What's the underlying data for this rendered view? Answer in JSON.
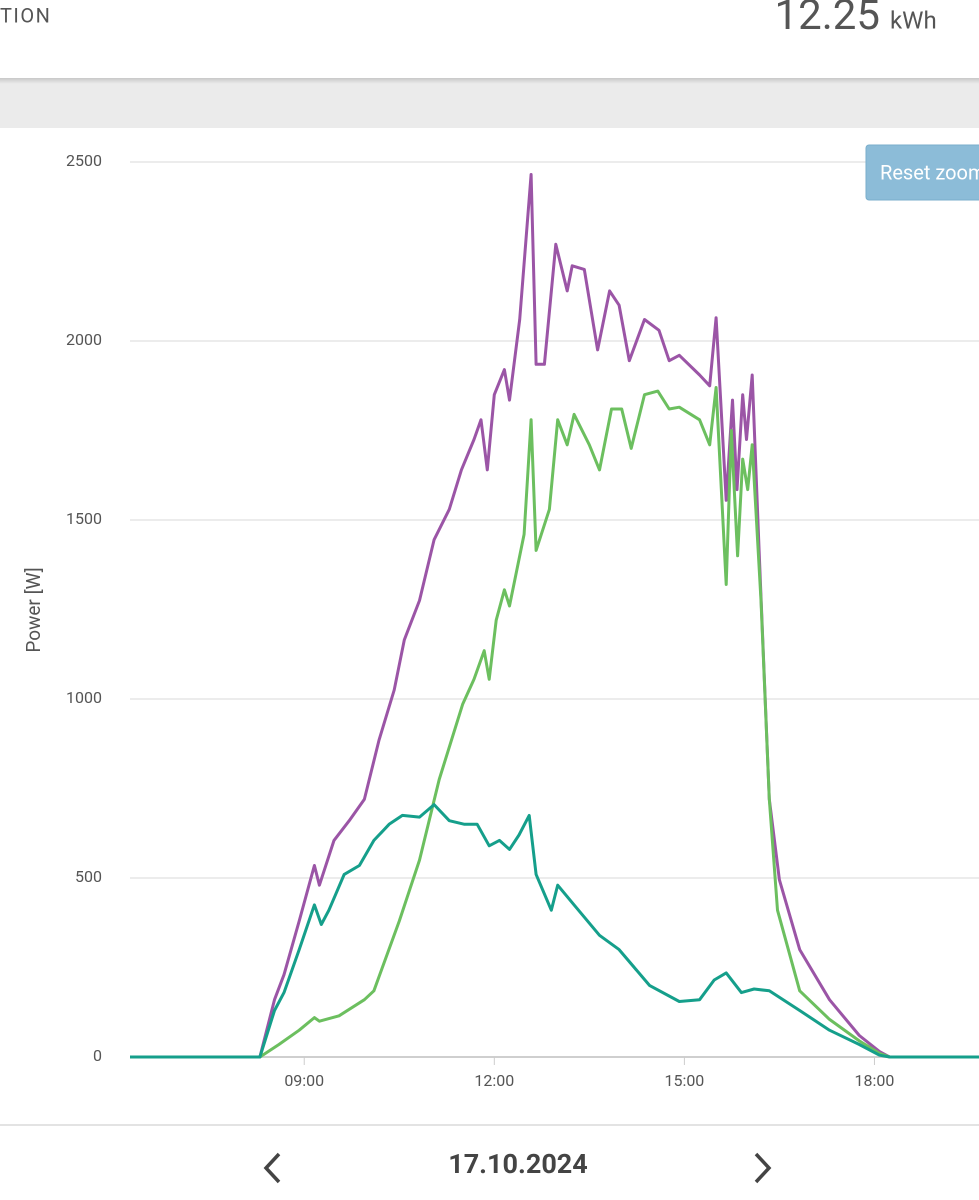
{
  "header": {
    "title": "TION",
    "total": "12.25",
    "unit": "kWh"
  },
  "reset_button": "Reset zoom",
  "date": "17.10.2024",
  "chart_data": {
    "type": "line",
    "ylabel": "Power [W]",
    "xlim": [
      6.25,
      19.65
    ],
    "ylim": [
      0,
      2500
    ],
    "xticks": [
      {
        "value": 9,
        "label": "09:00"
      },
      {
        "value": 12,
        "label": "12:00"
      },
      {
        "value": 15,
        "label": "15:00"
      },
      {
        "value": 18,
        "label": "18:00"
      }
    ],
    "yticks": [
      0,
      500,
      1000,
      1500,
      2000,
      2500
    ],
    "grid": true,
    "series": [
      {
        "color": "#9b55a6",
        "x": [
          6.25,
          8.3,
          8.53,
          8.68,
          8.92,
          9.16,
          9.24,
          9.47,
          9.71,
          9.95,
          10.18,
          10.42,
          10.58,
          10.82,
          11.05,
          11.29,
          11.48,
          11.68,
          11.79,
          11.89,
          12.0,
          12.16,
          12.24,
          12.4,
          12.58,
          12.66,
          12.79,
          12.97,
          13.15,
          13.23,
          13.42,
          13.63,
          13.82,
          13.97,
          14.13,
          14.37,
          14.6,
          14.76,
          14.92,
          15.24,
          15.4,
          15.5,
          15.66,
          15.76,
          15.83,
          15.92,
          15.98,
          16.07,
          16.18,
          16.34,
          16.5,
          16.82,
          17.29,
          17.76,
          18.08,
          18.24,
          19.65
        ],
        "values": [
          0,
          0,
          160,
          230,
          380,
          535,
          480,
          605,
          660,
          720,
          885,
          1025,
          1165,
          1275,
          1445,
          1530,
          1640,
          1725,
          1780,
          1640,
          1850,
          1920,
          1835,
          2060,
          2465,
          1935,
          1935,
          2270,
          2140,
          2210,
          2200,
          1975,
          2140,
          2100,
          1945,
          2060,
          2030,
          1945,
          1960,
          1905,
          1875,
          2065,
          1555,
          1835,
          1585,
          1850,
          1725,
          1905,
          1415,
          720,
          495,
          300,
          160,
          60,
          15,
          0,
          0
        ]
      },
      {
        "color": "#6cbf5f",
        "x": [
          6.25,
          8.3,
          8.6,
          8.92,
          9.16,
          9.24,
          9.55,
          9.95,
          10.1,
          10.5,
          10.82,
          11.13,
          11.5,
          11.68,
          11.84,
          11.92,
          12.03,
          12.16,
          12.24,
          12.47,
          12.58,
          12.66,
          12.87,
          13.0,
          13.15,
          13.26,
          13.5,
          13.66,
          13.85,
          14.01,
          14.16,
          14.37,
          14.58,
          14.76,
          14.92,
          15.24,
          15.4,
          15.5,
          15.66,
          15.74,
          15.84,
          15.92,
          16.0,
          16.07,
          16.21,
          16.34,
          16.47,
          16.82,
          17.29,
          17.76,
          18.08,
          18.24,
          19.65
        ],
        "values": [
          0,
          0,
          35,
          75,
          110,
          100,
          115,
          160,
          185,
          380,
          550,
          775,
          985,
          1055,
          1135,
          1055,
          1220,
          1305,
          1260,
          1460,
          1780,
          1415,
          1530,
          1780,
          1710,
          1795,
          1710,
          1640,
          1810,
          1810,
          1700,
          1850,
          1860,
          1810,
          1815,
          1780,
          1710,
          1870,
          1320,
          1750,
          1400,
          1670,
          1585,
          1710,
          1275,
          720,
          410,
          185,
          105,
          45,
          10,
          0,
          0
        ]
      },
      {
        "color": "#159f8b",
        "x": [
          6.25,
          8.3,
          8.53,
          8.68,
          8.92,
          9.16,
          9.27,
          9.39,
          9.63,
          9.87,
          10.1,
          10.34,
          10.55,
          10.82,
          11.05,
          11.29,
          11.53,
          11.73,
          11.92,
          12.08,
          12.24,
          12.39,
          12.55,
          12.66,
          12.9,
          13.0,
          13.26,
          13.66,
          13.97,
          14.45,
          14.92,
          15.24,
          15.47,
          15.66,
          15.9,
          16.1,
          16.34,
          16.82,
          17.29,
          17.76,
          18.08,
          18.24,
          19.65
        ],
        "values": [
          0,
          0,
          130,
          180,
          300,
          425,
          370,
          410,
          510,
          535,
          605,
          650,
          675,
          670,
          705,
          660,
          650,
          650,
          590,
          605,
          580,
          620,
          675,
          510,
          410,
          480,
          425,
          340,
          300,
          200,
          155,
          160,
          215,
          235,
          180,
          190,
          185,
          130,
          75,
          35,
          5,
          0,
          0
        ]
      }
    ]
  }
}
